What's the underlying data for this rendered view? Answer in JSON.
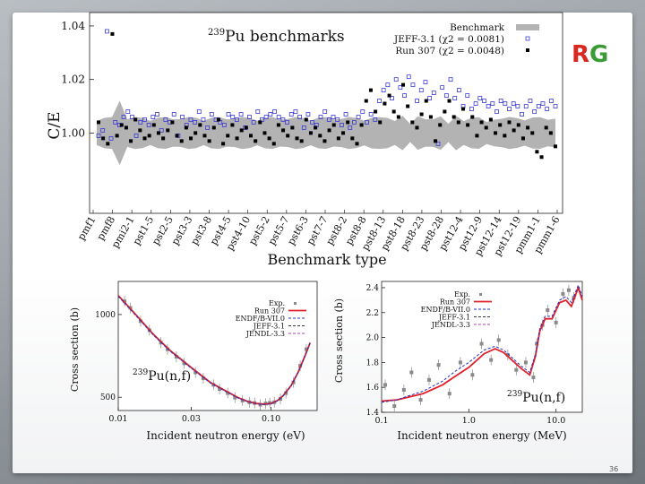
{
  "page": {
    "number": "36"
  },
  "logo": {
    "left_text": "R",
    "right_text": "G",
    "color_left": "#d9281f",
    "color_right": "#3a9b35"
  },
  "chart_data": [
    {
      "type": "scatter",
      "title_mass": "239",
      "title_main": "Pu benchmarks",
      "ylabel": "C/E",
      "xlabel": "Benchmark type",
      "ylim": [
        0.97,
        1.045
      ],
      "yticks": [
        1.0,
        1.02,
        1.04
      ],
      "ytick_labels": [
        "1.00",
        "1.02",
        "1.04"
      ],
      "categories": [
        "pmf1",
        "pmf8",
        "pmi2-1",
        "pst1-5",
        "pst2-5",
        "pst3-3",
        "pst3-8",
        "pst4-5",
        "pst4-10",
        "pst5-2",
        "pst5-7",
        "pst6-3",
        "pst7-7",
        "pst8-2",
        "pst8-8",
        "pst8-13",
        "pst8-18",
        "pst8-23",
        "pst8-28",
        "pst12-4",
        "pst12-9",
        "pst12-14",
        "pst12-19",
        "pmm1-1",
        "pmm1-6"
      ],
      "legend": [
        {
          "name": "Benchmark",
          "marker": "band"
        },
        {
          "name": "JEFF-3.1 (χ2 = 0.0081)",
          "marker": "open-square"
        },
        {
          "name": "Run 307 (χ2 = 0.0048)",
          "marker": "filled-square"
        }
      ],
      "series": [
        {
          "name": "JEFF-3.1",
          "color": "#3b3bd6",
          "values": [
            0.999,
            1.001,
            1.038,
            0.998,
            1.004,
            1.003,
            1.006,
            1.008,
            1.006,
            0.999,
            1.004,
            1.005,
            1.003,
            1.006,
            1.007,
            1.001,
            1.005,
            1.004,
            1.007,
            0.999,
            1.006,
            1.003,
            1.005,
            1.004,
            1.008,
            1.005,
            1.002,
            1.007,
            1.005,
            1.004,
            1.003,
            1.007,
            1.006,
            1.005,
            1.007,
            1.002,
            1.006,
            1.004,
            1.008,
            1.005,
            1.006,
            1.007,
            1.008,
            1.006,
            1.005,
            1.004,
            1.007,
            1.008,
            1.006,
            1.002,
            1.007,
            1.004,
            1.003,
            1.006,
            1.008,
            1.005,
            1.006,
            1.005,
            1.003,
            1.007,
            1.002,
            1.004,
            1.006,
            1.008,
            1.004,
            1.007,
            1.005,
            1.012,
            1.016,
            1.018,
            1.013,
            1.02,
            1.017,
            1.014,
            1.021,
            1.018,
            1.012,
            1.016,
            1.019,
            1.013,
            1.015,
            0.996,
            1.017,
            1.014,
            1.02,
            1.013,
            1.016,
            1.01,
            1.014,
            1.009,
            1.011,
            1.013,
            1.012,
            1.01,
            1.011,
            1.008,
            1.012,
            1.011,
            1.009,
            1.011,
            1.01,
            1.007,
            1.01,
            1.012,
            1.008,
            1.01,
            1.011,
            1.009,
            1.012,
            1.01
          ]
        },
        {
          "name": "Run 307",
          "color": "#000000",
          "values": [
            1.004,
            0.998,
            0.996,
            1.037,
            0.999,
            1.003,
            1.002,
            0.997,
            1.005,
            1.001,
            0.998,
            0.999,
            1.003,
            1.0,
            0.998,
            1.001,
            1.004,
            0.999,
            0.997,
            1.002,
            0.998,
            1.0,
            1.003,
            0.999,
            0.997,
            1.002,
            1.005,
            0.996,
            0.999,
            1.003,
            0.998,
            1.001,
            1.002,
            0.999,
            0.997,
            1.004,
            1.0,
            0.998,
            0.996,
            1.003,
            1.001,
            0.999,
            1.002,
            0.998,
            0.997,
            1.005,
            1.0,
            1.002,
            0.999,
            0.997,
            1.001,
            1.003,
            0.998,
            1.0,
            1.004,
            0.998,
            0.996,
            1.003,
            1.012,
            1.016,
            1.008,
            1.004,
            1.011,
            1.014,
            1.008,
            1.006,
            1.018,
            1.01,
            1.004,
            1.002,
            1.007,
            1.012,
            1.006,
            0.997,
            1.003,
            1.008,
            1.012,
            1.006,
            1.004,
            1.009,
            1.003,
            1.006,
            0.999,
            1.004,
            1.002,
            1.005,
            1.0,
            1.003,
            0.999,
            1.004,
            1.001,
            1.003,
            0.998,
            1.002,
            1.0,
            0.993,
            0.991,
            1.002,
            1.0,
            0.995
          ]
        }
      ]
    },
    {
      "type": "line",
      "ylabel": "Cross section (b)",
      "xlabel": "Incident neutron energy (eV)",
      "annotation_mass": "239",
      "annotation_main": "Pu(n,f)",
      "xscale": "log",
      "xlim": [
        0.01,
        0.2
      ],
      "xticks": [
        0.01,
        0.03,
        0.1
      ],
      "xtick_labels": [
        "0.01",
        "0.03",
        "0.10"
      ],
      "ylim": [
        420,
        1200
      ],
      "yticks": [
        500,
        1000
      ],
      "ytick_labels": [
        "500",
        "1000"
      ],
      "legend": [
        "Exp.",
        "Run 307",
        "ENDF/B-VII.0",
        "JEFF-3.1",
        "JENDL-3.3"
      ],
      "series": [
        {
          "name": "Run 307",
          "color": "#e0202a",
          "x": [
            0.01,
            0.013,
            0.017,
            0.022,
            0.03,
            0.04,
            0.05,
            0.06,
            0.07,
            0.08,
            0.09,
            0.1,
            0.11,
            0.12,
            0.135,
            0.15,
            0.165,
            0.18
          ],
          "y": [
            1115,
            1000,
            880,
            780,
            680,
            590,
            540,
            500,
            475,
            462,
            458,
            462,
            480,
            510,
            570,
            650,
            740,
            830
          ]
        },
        {
          "name": "JEFF-3.1",
          "color": "#2030c0",
          "x": [
            0.01,
            0.013,
            0.017,
            0.022,
            0.03,
            0.04,
            0.05,
            0.06,
            0.07,
            0.08,
            0.09,
            0.1,
            0.11,
            0.12,
            0.135,
            0.15,
            0.165,
            0.18
          ],
          "y": [
            1110,
            995,
            875,
            776,
            676,
            587,
            537,
            498,
            473,
            460,
            456,
            460,
            478,
            508,
            568,
            648,
            738,
            828
          ]
        }
      ],
      "experimental": {
        "x": [
          0.011,
          0.012,
          0.014,
          0.016,
          0.019,
          0.021,
          0.024,
          0.027,
          0.032,
          0.036,
          0.042,
          0.046,
          0.052,
          0.058,
          0.065,
          0.072,
          0.078,
          0.085,
          0.092,
          0.098,
          0.105,
          0.115,
          0.125,
          0.14,
          0.155,
          0.17
        ],
        "y": [
          1080,
          1040,
          960,
          905,
          830,
          790,
          745,
          705,
          650,
          615,
          575,
          550,
          525,
          498,
          480,
          470,
          465,
          455,
          462,
          466,
          470,
          490,
          525,
          590,
          690,
          790
        ]
      }
    },
    {
      "type": "line",
      "ylabel": "Cross section (b)",
      "xlabel": "Incident neutron energy (MeV)",
      "annotation_mass": "239",
      "annotation_main": "Pu(n,f)",
      "xscale": "log",
      "xlim": [
        0.1,
        20
      ],
      "xticks": [
        0.1,
        1.0,
        10.0
      ],
      "xtick_labels": [
        "0.1",
        "1.0",
        "10.0"
      ],
      "ylim": [
        1.4,
        2.45
      ],
      "yticks": [
        1.4,
        1.6,
        1.8,
        2.0,
        2.2,
        2.4
      ],
      "ytick_labels": [
        "1.4",
        "1.6",
        "1.8",
        "2.0",
        "2.2",
        "2.4"
      ],
      "legend": [
        "Exp.",
        "Run 307",
        "ENDF/B-VII.0",
        "JEFF-3.1",
        "JENDL-3.3"
      ],
      "series": [
        {
          "name": "Run 307",
          "color": "#e0202a",
          "x": [
            0.1,
            0.15,
            0.2,
            0.3,
            0.5,
            0.7,
            1.0,
            1.5,
            2.0,
            2.5,
            3.0,
            4.0,
            5.0,
            5.8,
            6.5,
            7.5,
            9.0,
            11.0,
            13.0,
            15.0,
            18.0,
            20.0
          ],
          "y": [
            1.49,
            1.5,
            1.52,
            1.55,
            1.62,
            1.69,
            1.76,
            1.87,
            1.91,
            1.88,
            1.83,
            1.75,
            1.7,
            1.85,
            2.05,
            2.15,
            2.15,
            2.28,
            2.3,
            2.25,
            2.4,
            2.3
          ]
        },
        {
          "name": "ENDF/B-VII.0",
          "color": "#2030c0",
          "x": [
            0.1,
            0.15,
            0.2,
            0.3,
            0.5,
            0.7,
            1.0,
            1.5,
            2.0,
            2.5,
            3.0,
            4.0,
            5.0,
            5.8,
            6.5,
            7.5,
            9.0,
            11.0,
            13.0,
            15.0,
            18.0,
            20.0
          ],
          "y": [
            1.48,
            1.5,
            1.53,
            1.57,
            1.65,
            1.73,
            1.8,
            1.9,
            1.93,
            1.9,
            1.85,
            1.77,
            1.72,
            1.87,
            2.07,
            2.17,
            2.17,
            2.3,
            2.33,
            2.28,
            2.42,
            2.33
          ]
        }
      ],
      "experimental": {
        "x": [
          0.11,
          0.14,
          0.18,
          0.22,
          0.28,
          0.35,
          0.45,
          0.6,
          0.8,
          1.1,
          1.4,
          1.8,
          2.2,
          2.8,
          3.5,
          4.5,
          5.5,
          6.0,
          7.0,
          8.0,
          10.0,
          12.0,
          14.0,
          16.0
        ],
        "y": [
          1.62,
          1.45,
          1.58,
          1.72,
          1.5,
          1.66,
          1.78,
          1.55,
          1.8,
          1.7,
          1.95,
          1.82,
          1.98,
          1.86,
          1.74,
          1.8,
          1.68,
          1.95,
          2.1,
          2.22,
          2.12,
          2.35,
          2.38,
          2.32
        ]
      }
    }
  ]
}
